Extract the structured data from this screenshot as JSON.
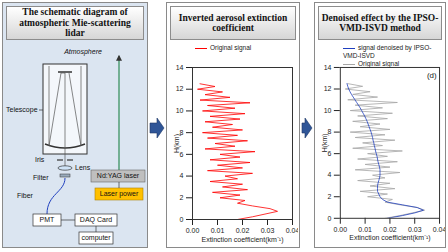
{
  "diagram": {
    "title": "The schematic diagram of atmospheric Mie-scattering lidar",
    "labels": {
      "atmosphere": "Atmosphere",
      "telescope": "Telescope",
      "iris": "Iris",
      "lens": "Lens",
      "filter": "Filter",
      "fiber": "Fiber",
      "laser": "Nd:YAG laser",
      "laser_power": "Laser power",
      "pmt": "PMT",
      "daq": "DAQ Card",
      "computer": "computer"
    }
  },
  "chart_data": [
    {
      "type": "line",
      "title": "Inverted aerosol extinction coefficient",
      "xlabel": "Extinction coefficient(km⁻¹)",
      "ylabel": "H(km)",
      "y": [
        0,
        0.25,
        0.5,
        0.75,
        1.0,
        1.25,
        1.5,
        1.75,
        2.0,
        2.25,
        2.5,
        2.75,
        3.0,
        3.25,
        3.5,
        3.75,
        4.0,
        4.25,
        4.5,
        4.75,
        5.0,
        5.25,
        5.5,
        5.75,
        6.0,
        6.25,
        6.5,
        6.75,
        7.0,
        7.25,
        7.5,
        7.75,
        8.0,
        8.25,
        8.5,
        8.75,
        9.0,
        9.25,
        9.5,
        9.75,
        10.0,
        10.25,
        10.5,
        10.75,
        11.0,
        11.25,
        11.5,
        11.75,
        12.0,
        12.25,
        12.5
      ],
      "series": [
        {
          "name": "Original signal",
          "color": "#ff0000",
          "values": [
            0.018,
            0.024,
            0.029,
            0.034,
            0.031,
            0.024,
            0.018,
            0.021,
            0.011,
            0.019,
            0.008,
            0.022,
            0.012,
            0.02,
            0.007,
            0.018,
            0.013,
            0.024,
            0.006,
            0.02,
            0.01,
            0.023,
            0.007,
            0.019,
            0.011,
            0.025,
            0.005,
            0.017,
            0.009,
            0.022,
            0.006,
            0.018,
            0.004,
            0.02,
            0.008,
            0.016,
            0.005,
            0.019,
            0.007,
            0.021,
            0.004,
            0.017,
            0.006,
            0.023,
            0.003,
            0.015,
            0.005,
            0.012,
            0.002,
            0.009,
            0.003
          ]
        }
      ],
      "xlim": [
        0,
        0.04
      ],
      "xticks": [
        {
          "value": 0,
          "label": "0.00"
        },
        0.01,
        0.02,
        0.03,
        0.04
      ],
      "ylim": [
        0,
        14
      ],
      "yticks": [
        0,
        2,
        4,
        6,
        8,
        10,
        12,
        14
      ]
    },
    {
      "type": "line",
      "title": "Denoised effect by the IPSO-VMD-ISVD method",
      "xlabel": "Extinction coefficient(km⁻¹)",
      "ylabel": "H(km)",
      "annotation": "(d)",
      "y": [
        0,
        0.25,
        0.5,
        0.75,
        1.0,
        1.25,
        1.5,
        1.75,
        2.0,
        2.25,
        2.5,
        2.75,
        3.0,
        3.25,
        3.5,
        3.75,
        4.0,
        4.25,
        4.5,
        4.75,
        5.0,
        5.25,
        5.5,
        5.75,
        6.0,
        6.25,
        6.5,
        6.75,
        7.0,
        7.25,
        7.5,
        7.75,
        8.0,
        8.25,
        8.5,
        8.75,
        9.0,
        9.25,
        9.5,
        9.75,
        10.0,
        10.25,
        10.5,
        10.75,
        11.0,
        11.25,
        11.5,
        11.75,
        12.0,
        12.25,
        12.5
      ],
      "series": [
        {
          "name": "signal denoised by IPSO-VMD-ISVD",
          "color": "#1f3fbf",
          "values": [
            0.019,
            0.025,
            0.03,
            0.0335,
            0.031,
            0.025,
            0.019,
            0.017,
            0.016,
            0.0155,
            0.015,
            0.015,
            0.015,
            0.0152,
            0.0155,
            0.0158,
            0.016,
            0.016,
            0.016,
            0.0158,
            0.0155,
            0.0152,
            0.015,
            0.0148,
            0.0145,
            0.0142,
            0.014,
            0.0137,
            0.0135,
            0.0132,
            0.013,
            0.0127,
            0.0124,
            0.012,
            0.0116,
            0.0112,
            0.0108,
            0.0103,
            0.0098,
            0.0092,
            0.0086,
            0.008,
            0.0073,
            0.0066,
            0.0059,
            0.0052,
            0.0045,
            0.0039,
            0.0034,
            0.003,
            0.0027
          ]
        },
        {
          "name": "Original signal",
          "color": "#a6a6a6",
          "values": [
            0.018,
            0.024,
            0.029,
            0.034,
            0.031,
            0.024,
            0.018,
            0.021,
            0.011,
            0.019,
            0.008,
            0.022,
            0.012,
            0.02,
            0.007,
            0.018,
            0.013,
            0.024,
            0.006,
            0.02,
            0.01,
            0.023,
            0.007,
            0.019,
            0.011,
            0.025,
            0.005,
            0.017,
            0.009,
            0.022,
            0.006,
            0.018,
            0.004,
            0.02,
            0.008,
            0.016,
            0.005,
            0.019,
            0.007,
            0.021,
            0.004,
            0.017,
            0.006,
            0.023,
            0.003,
            0.015,
            0.005,
            0.012,
            0.002,
            0.009,
            0.003
          ]
        }
      ],
      "xlim": [
        0,
        0.04
      ],
      "xticks": [
        {
          "value": 0,
          "label": "0.00"
        },
        0.01,
        0.02,
        0.03,
        0.04
      ],
      "ylim": [
        0,
        14
      ],
      "yticks": [
        0,
        2,
        4,
        6,
        8,
        10,
        12,
        14
      ]
    }
  ]
}
